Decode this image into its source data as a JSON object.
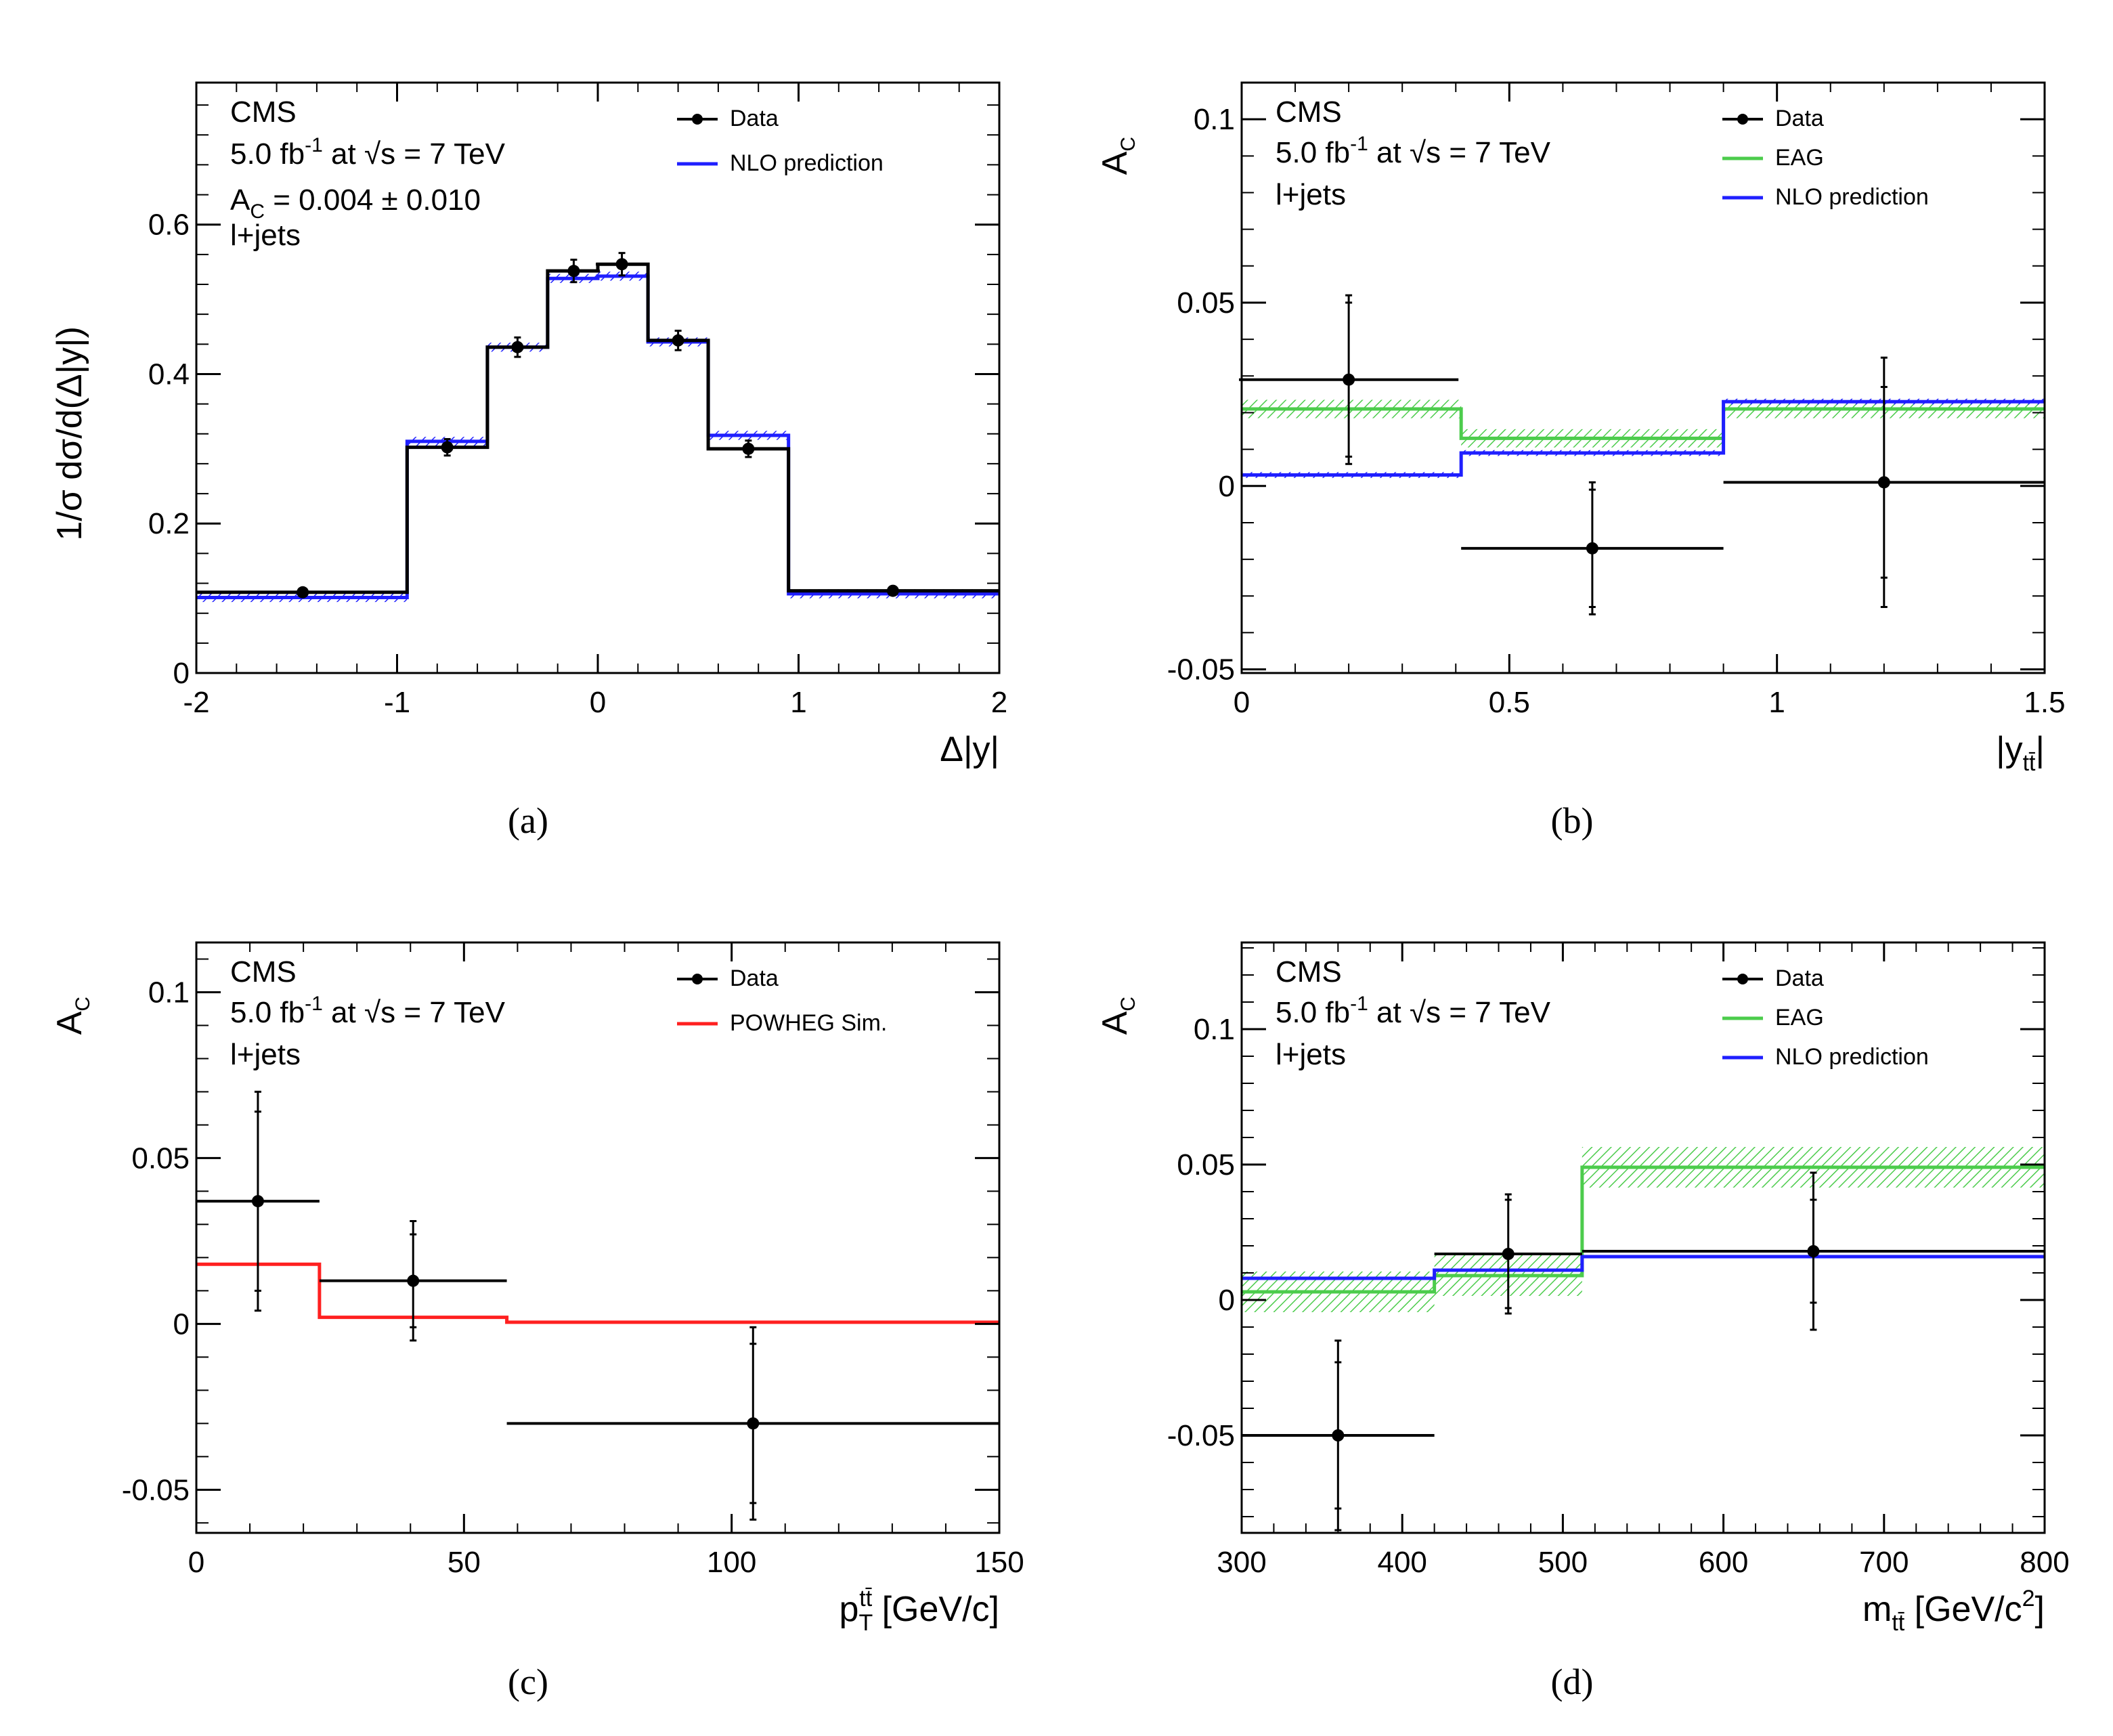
{
  "panel_labels": [
    "(a)",
    "(b)",
    "(c)",
    "(d)"
  ],
  "colors": {
    "data": "#000000",
    "nlo": "#1f1fff",
    "eag": "#4ccc4c",
    "powheg": "#ff2020"
  },
  "chart_data": [
    {
      "id": "a",
      "type": "step",
      "ylabel": "1/σ dσ/d(Δ|y|)",
      "xlabel": "Δ|y|",
      "annotations": [
        "CMS",
        "5.0 fb-1 at √s = 7 TeV",
        "AC = 0.004 ± 0.010",
        "l+jets"
      ],
      "xlim": [
        -2,
        2
      ],
      "ylim": [
        0,
        0.79
      ],
      "xticks": [
        -2,
        -1,
        0,
        1,
        2
      ],
      "xtick_labels": [
        "-2",
        "-1",
        "0",
        "1",
        "2"
      ],
      "yticks": [
        0,
        0.2,
        0.4,
        0.6
      ],
      "ytick_labels": [
        "0",
        "0.2",
        "0.4",
        "0.6"
      ],
      "legend": [
        {
          "label": "Data",
          "style": "marker"
        },
        {
          "label": "NLO prediction",
          "style": "nlo"
        }
      ],
      "series": [
        {
          "name": "NLO prediction",
          "style": "nlo",
          "edges": [
            -2,
            -0.95,
            -0.55,
            -0.25,
            0,
            0.25,
            0.55,
            0.95,
            2
          ],
          "values": [
            0.101,
            0.31,
            0.436,
            0.528,
            0.531,
            0.443,
            0.318,
            0.106
          ],
          "band": 0.006
        },
        {
          "name": "Data",
          "style": "data",
          "edges": [
            -2,
            -0.95,
            -0.55,
            -0.25,
            0,
            0.25,
            0.55,
            0.95,
            2
          ],
          "values": [
            0.108,
            0.302,
            0.436,
            0.538,
            0.547,
            0.445,
            0.3,
            0.11
          ],
          "points": [
            {
              "x": -1.47,
              "y": 0.108,
              "xerr": 0,
              "yerr": 0.005
            },
            {
              "x": -0.75,
              "y": 0.302,
              "xerr": 0,
              "yerr": 0.011
            },
            {
              "x": -0.4,
              "y": 0.436,
              "xerr": 0,
              "yerr": 0.013
            },
            {
              "x": -0.12,
              "y": 0.538,
              "xerr": 0.13,
              "yerr": 0.015
            },
            {
              "x": 0.12,
              "y": 0.547,
              "xerr": 0.13,
              "yerr": 0.015
            },
            {
              "x": 0.4,
              "y": 0.445,
              "xerr": 0,
              "yerr": 0.013
            },
            {
              "x": 0.75,
              "y": 0.3,
              "xerr": 0,
              "yerr": 0.011
            },
            {
              "x": 1.47,
              "y": 0.11,
              "xerr": 0,
              "yerr": 0.005
            }
          ]
        }
      ]
    },
    {
      "id": "b",
      "type": "step",
      "ylabel": "AC",
      "xlabel": "|ytt̄|",
      "annotations": [
        "CMS",
        "5.0 fb-1 at √s = 7 TeV",
        "l+jets"
      ],
      "xlim": [
        0,
        1.5
      ],
      "ylim": [
        -0.051,
        0.11
      ],
      "xticks": [
        0,
        0.5,
        1,
        1.5
      ],
      "xtick_labels": [
        "0",
        "0.5",
        "1",
        "1.5"
      ],
      "yticks": [
        -0.05,
        0,
        0.05,
        0.1
      ],
      "ytick_labels": [
        "-0.05",
        "0",
        "0.05",
        "0.1"
      ],
      "legend": [
        {
          "label": "Data",
          "style": "marker"
        },
        {
          "label": "EAG",
          "style": "eag"
        },
        {
          "label": "NLO prediction",
          "style": "nlo"
        }
      ],
      "series": [
        {
          "name": "EAG",
          "style": "eag",
          "edges": [
            0,
            0.41,
            0.9,
            1.5
          ],
          "values": [
            0.021,
            0.013,
            0.021
          ],
          "band": 0.0025
        },
        {
          "name": "NLO prediction",
          "style": "nlo",
          "edges": [
            0,
            0.41,
            0.9,
            1.5
          ],
          "values": [
            0.003,
            0.009,
            0.023
          ],
          "band": 0.0008
        },
        {
          "name": "Data",
          "style": "data",
          "points": [
            {
              "x": 0.2,
              "y": 0.029,
              "xerr": 0.205,
              "yerr": 0.023,
              "yerr_inner": 0.021
            },
            {
              "x": 0.655,
              "y": -0.017,
              "xerr": 0.245,
              "yerr": 0.018,
              "yerr_inner": 0.016
            },
            {
              "x": 1.2,
              "y": 0.001,
              "xerr": 0.3,
              "yerr": 0.034,
              "yerr_inner": 0.026
            }
          ]
        }
      ]
    },
    {
      "id": "c",
      "type": "step",
      "ylabel": "AC",
      "xlabel": "pTtt̄ [GeV/c]",
      "annotations": [
        "CMS",
        "5.0 fb-1 at √s = 7 TeV",
        "l+jets"
      ],
      "xlim": [
        0,
        150
      ],
      "ylim": [
        -0.063,
        0.115
      ],
      "xticks": [
        0,
        50,
        100,
        150
      ],
      "xtick_labels": [
        "0",
        "50",
        "100",
        "150"
      ],
      "yticks": [
        -0.05,
        0,
        0.05,
        0.1
      ],
      "ytick_labels": [
        "-0.05",
        "0",
        "0.05",
        "0.1"
      ],
      "legend": [
        {
          "label": "Data",
          "style": "marker"
        },
        {
          "label": "POWHEG Sim.",
          "style": "powheg"
        }
      ],
      "series": [
        {
          "name": "POWHEG Sim.",
          "style": "powheg",
          "edges": [
            0,
            23,
            58,
            150
          ],
          "values": [
            0.018,
            0.002,
            0.0005
          ],
          "band": 0.0004
        },
        {
          "name": "Data",
          "style": "data",
          "points": [
            {
              "x": 11.5,
              "y": 0.037,
              "xerr": 11.5,
              "yerr": 0.033,
              "yerr_inner": 0.027
            },
            {
              "x": 40.5,
              "y": 0.013,
              "xerr": 17.5,
              "yerr": 0.018,
              "yerr_inner": 0.014
            },
            {
              "x": 104,
              "y": -0.03,
              "xerr": 46,
              "yerr": 0.029,
              "yerr_inner": 0.024
            }
          ]
        }
      ]
    },
    {
      "id": "d",
      "type": "step",
      "ylabel": "AC",
      "xlabel": "mtt̄ [GeV/c2]",
      "annotations": [
        "CMS",
        "5.0 fb-1 at √s = 7 TeV",
        "l+jets"
      ],
      "xlim": [
        300,
        800
      ],
      "ylim": [
        -0.086,
        0.132
      ],
      "xticks": [
        300,
        400,
        500,
        600,
        700,
        800
      ],
      "xtick_labels": [
        "300",
        "400",
        "500",
        "600",
        "700",
        "800"
      ],
      "yticks": [
        -0.05,
        0,
        0.05,
        0.1
      ],
      "ytick_labels": [
        "-0.05",
        "0",
        "0.05",
        "0.1"
      ],
      "legend": [
        {
          "label": "Data",
          "style": "marker"
        },
        {
          "label": "EAG",
          "style": "eag"
        },
        {
          "label": "NLO prediction",
          "style": "nlo"
        }
      ],
      "series": [
        {
          "name": "EAG",
          "style": "eag",
          "edges": [
            300,
            420,
            512,
            800
          ],
          "values": [
            0.003,
            0.009,
            0.049
          ],
          "band": 0.0075
        },
        {
          "name": "NLO prediction",
          "style": "nlo",
          "edges": [
            300,
            420,
            512,
            800
          ],
          "values": [
            0.008,
            0.011,
            0.016
          ],
          "band": 0.0006
        },
        {
          "name": "Data",
          "style": "data",
          "points": [
            {
              "x": 360,
              "y": -0.05,
              "xerr": 60,
              "yerr": 0.035,
              "yerr_inner": 0.027
            },
            {
              "x": 466,
              "y": 0.017,
              "xerr": 46,
              "yerr": 0.022,
              "yerr_inner": 0.02
            },
            {
              "x": 656,
              "y": 0.018,
              "xerr": 144,
              "yerr": 0.029,
              "yerr_inner": 0.019
            }
          ]
        }
      ]
    }
  ]
}
